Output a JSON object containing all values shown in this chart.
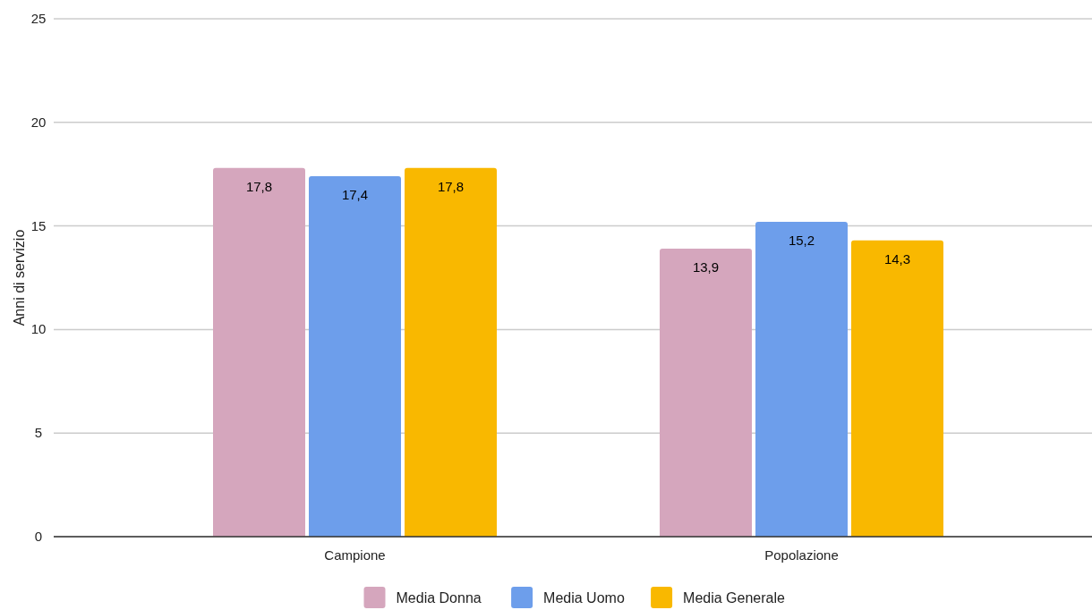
{
  "chart_data": {
    "type": "bar",
    "ylabel": "Anni di servizio",
    "categories": [
      "Campione",
      "Popolazione"
    ],
    "series": [
      {
        "name": "Media Donna",
        "color": "#d5a6bd",
        "values": [
          17.8,
          13.9
        ],
        "value_labels": [
          "17,8",
          "13,9"
        ]
      },
      {
        "name": "Media Uomo",
        "color": "#6d9eeb",
        "values": [
          17.4,
          15.2
        ],
        "value_labels": [
          "17,4",
          "15,2"
        ]
      },
      {
        "name": "Media Generale",
        "color": "#f9b800",
        "values": [
          17.8,
          14.3
        ],
        "value_labels": [
          "17,8",
          "14,3"
        ]
      }
    ],
    "ylim": [
      0,
      25
    ],
    "yticks": [
      0,
      5,
      10,
      15,
      20,
      25
    ],
    "grid": "y",
    "legend": "bottom"
  }
}
